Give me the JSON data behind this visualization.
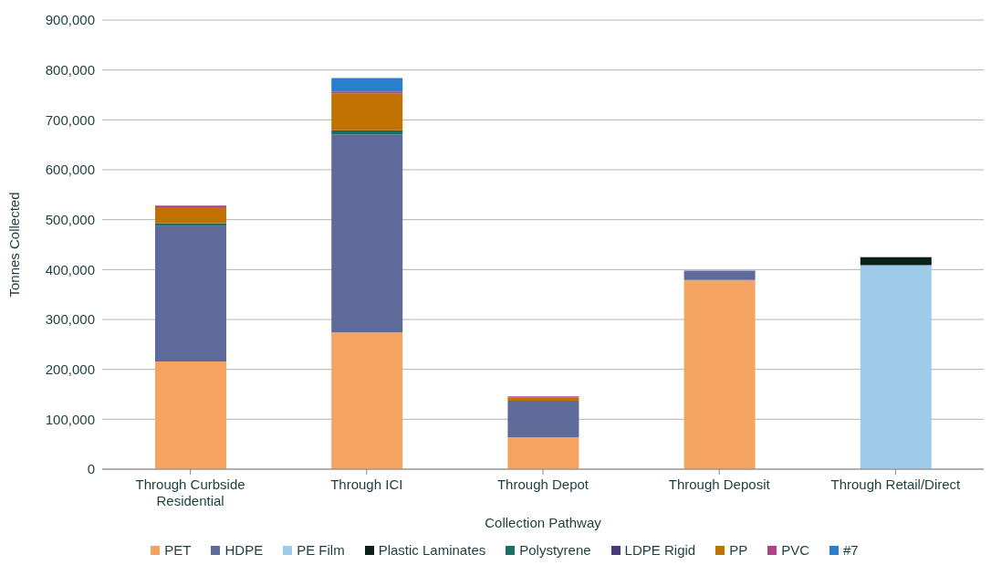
{
  "chart_data": {
    "type": "bar",
    "stacked": true,
    "xlabel": "Collection Pathway",
    "ylabel": "Tonnes Collected",
    "categories": [
      "Through Curbside Residential",
      "Through ICI",
      "Through Depot",
      "Through Deposit",
      "Through Retail/Direct"
    ],
    "series": [
      {
        "name": "PET",
        "color": "#f4a361",
        "values": [
          216000,
          274000,
          64000,
          379000,
          0
        ]
      },
      {
        "name": "HDPE",
        "color": "#5e6b9a",
        "values": [
          271000,
          397000,
          73000,
          19000,
          0
        ]
      },
      {
        "name": "PE Film",
        "color": "#9fcbeb",
        "values": [
          0,
          0,
          0,
          0,
          409000
        ]
      },
      {
        "name": "Plastic Laminates",
        "color": "#0b1f1c",
        "values": [
          0,
          0,
          0,
          0,
          16000
        ]
      },
      {
        "name": "Polystyrene",
        "color": "#1b6f64",
        "values": [
          6000,
          6000,
          0,
          0,
          0
        ]
      },
      {
        "name": "LDPE Rigid",
        "color": "#4b3a78",
        "values": [
          null,
          2000,
          0,
          0,
          0
        ]
      },
      {
        "name": "PP",
        "color": "#bf7200",
        "values": [
          32000,
          74000,
          7000,
          0,
          0
        ]
      },
      {
        "name": "PVC",
        "color": "#b0418a",
        "values": [
          3000,
          4000,
          2000,
          0,
          0
        ]
      },
      {
        "name": "#7",
        "color": "#2a7fcc",
        "values": [
          0,
          27000,
          0,
          0,
          0
        ]
      }
    ],
    "ylim": [
      0,
      900000
    ],
    "yticks": [
      {
        "value": 0,
        "label": "0"
      },
      {
        "value": 100000,
        "label": "100,000"
      },
      {
        "value": 200000,
        "label": "200,000"
      },
      {
        "value": 300000,
        "label": "300,000"
      },
      {
        "value": 400000,
        "label": "400,000"
      },
      {
        "value": 500000,
        "label": "500,000"
      },
      {
        "value": 600000,
        "label": "600,000"
      },
      {
        "value": 700000,
        "label": "700,000"
      },
      {
        "value": 800000,
        "label": "800,000"
      },
      {
        "value": 900000,
        "label": "900,000"
      }
    ],
    "grid": "y",
    "legend": "bottom"
  }
}
